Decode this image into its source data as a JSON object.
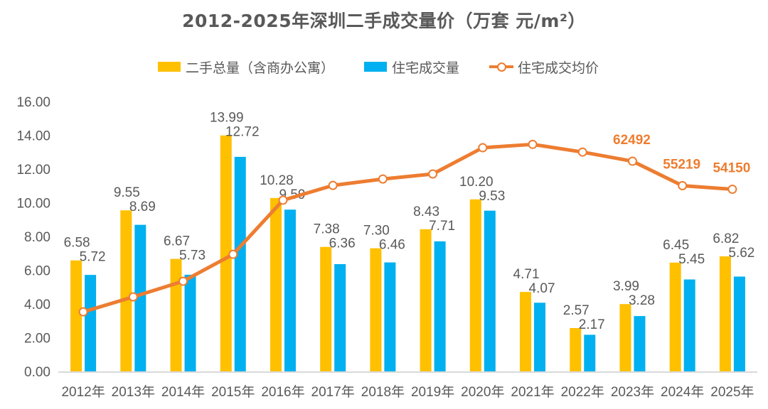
{
  "chart_data": {
    "type": "bar",
    "title": "2012-2025年深圳二手成交量价（万套  元/m²）",
    "categories": [
      "2012年",
      "2013年",
      "2014年",
      "2015年",
      "2016年",
      "2017年",
      "2018年",
      "2019年",
      "2020年",
      "2021年",
      "2022年",
      "2023年",
      "2024年",
      "2025年"
    ],
    "series": [
      {
        "name": "二手总量（含商办公寓）",
        "type": "bar",
        "color": "#FFC000",
        "values": [
          6.58,
          9.55,
          6.67,
          13.99,
          10.28,
          7.38,
          7.3,
          8.43,
          10.2,
          4.71,
          2.57,
          3.99,
          6.45,
          6.82
        ],
        "labels": [
          "6.58",
          "9.55",
          "6.67",
          "13.99",
          "10.28",
          "7.38",
          "7.30",
          "8.43",
          "10.20",
          "4.71",
          "2.57",
          "3.99",
          "6.45",
          "6.82"
        ]
      },
      {
        "name": "住宅成交量",
        "type": "bar",
        "color": "#00B0F0",
        "values": [
          5.72,
          8.69,
          5.73,
          12.72,
          9.59,
          6.36,
          6.46,
          7.71,
          9.53,
          4.07,
          2.17,
          3.28,
          5.45,
          5.62
        ],
        "labels": [
          "5.72",
          "8.69",
          "5.73",
          "12.72",
          "9.59",
          "6.36",
          "6.46",
          "7.71",
          "9.53",
          "4.07",
          "2.17",
          "3.28",
          "5.45",
          "5.62"
        ]
      },
      {
        "name": "住宅成交均价",
        "type": "line",
        "color": "#ED7D31",
        "axis": "secondary-hidden",
        "values": [
          17700,
          22150,
          26800,
          34800,
          50900,
          55300,
          57200,
          58700,
          66500,
          67500,
          65200,
          62492,
          55219,
          54150
        ],
        "labels": [
          "",
          "",
          "",
          "",
          "",
          "",
          "",
          "",
          "",
          "",
          "",
          "62492",
          "55219",
          "54150"
        ]
      }
    ],
    "yaxis": {
      "ylim": [
        0,
        16
      ],
      "ticks": [
        "0.00",
        "2.00",
        "4.00",
        "6.00",
        "8.00",
        "10.00",
        "12.00",
        "14.00",
        "16.00"
      ],
      "tick_values": [
        0,
        2,
        4,
        6,
        8,
        10,
        12,
        14,
        16
      ]
    },
    "y2lim": [
      0,
      80236
    ],
    "xlabel": "",
    "ylabel": "",
    "grid": false,
    "legend_position": "top"
  },
  "colors": {
    "text": "#595959",
    "axis": "#D9D9D9",
    "price_label": "#ED7D31"
  }
}
